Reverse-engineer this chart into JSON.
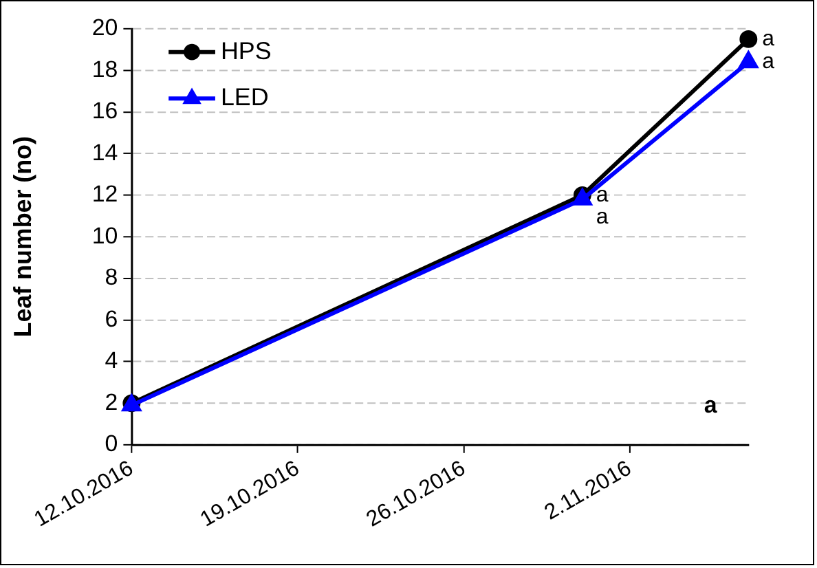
{
  "chart_data": {
    "type": "line",
    "ylabel": "Leaf number (no)",
    "x": [
      "2016-10-12",
      "2016-10-31",
      "2016-11-07"
    ],
    "series": [
      {
        "name": "HPS",
        "color": "#000000",
        "marker": "circle",
        "values": [
          2.0,
          12.0,
          19.5
        ]
      },
      {
        "name": "LED",
        "color": "#0000ff",
        "marker": "triangle",
        "values": [
          1.9,
          11.8,
          18.4
        ]
      }
    ],
    "xlim": [
      "2016-10-12",
      "2016-11-07"
    ],
    "xticks": [
      {
        "value": "2016-10-12",
        "label": "12.10.2016"
      },
      {
        "value": "2016-10-19",
        "label": "19.10.2016"
      },
      {
        "value": "2016-10-26",
        "label": "26.10.2016"
      },
      {
        "value": "2016-11-02",
        "label": "2.11.2016"
      }
    ],
    "ylim": [
      0,
      20
    ],
    "yticks": [
      0,
      2,
      4,
      6,
      8,
      10,
      12,
      14,
      16,
      18,
      20
    ],
    "grid": "y",
    "legend": "top left",
    "line_style": "solid",
    "annotations": [
      {
        "text": "a",
        "x": "2016-11-07",
        "y": 19.5
      },
      {
        "text": "a",
        "x": "2016-11-07",
        "y": 18.4
      },
      {
        "text": "a",
        "x": "2016-10-31",
        "y": 12.0
      },
      {
        "text": "a",
        "x": "2016-10-31",
        "y": 11.8
      },
      "a"
    ]
  }
}
